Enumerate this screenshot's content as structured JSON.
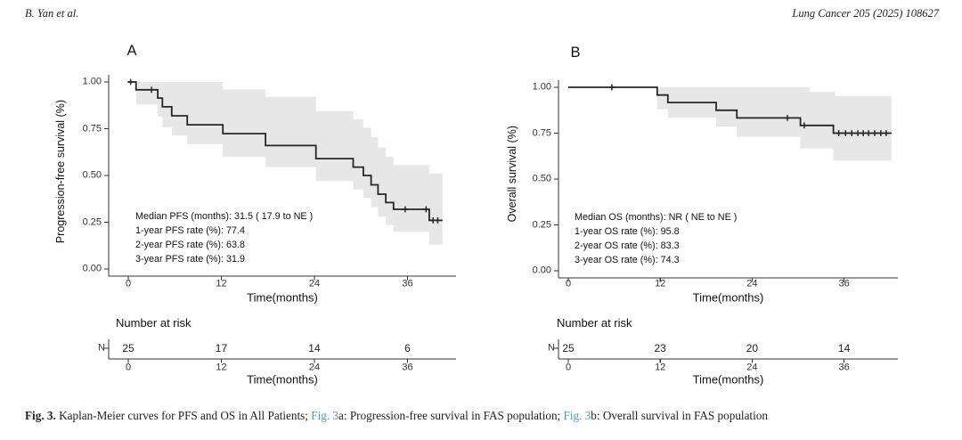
{
  "header": {
    "authors": "B. Yan et al.",
    "citation": "Lung Cancer 205 (2025) 108627"
  },
  "caption": {
    "label": "Fig. 3.",
    "part1": " Kaplan-Meier curves for PFS and OS in All Patients; ",
    "ref_a": "Fig. 3",
    "part2": "a: Progression-free survival in FAS population; ",
    "ref_b": "Fig. 3",
    "part3": "b: Overall survival in FAS population"
  },
  "colors": {
    "curve": "#262626",
    "band": "#e7e7e7",
    "axis": "#333333",
    "link": "#4b9cd3",
    "text": "#1a1a1a"
  },
  "chart_data": [
    {
      "type": "line",
      "subtype": "kaplan-meier-step",
      "panel_label": "A",
      "ylabel": "Progression-free survival (%)",
      "xlabel": "Time(months)",
      "xlim": [
        0,
        42
      ],
      "ylim": [
        0,
        1
      ],
      "x_ticks": [
        {
          "label": "0",
          "v": 0
        },
        {
          "label": "12",
          "v": 12
        },
        {
          "label": "24",
          "v": 24
        },
        {
          "label": "36",
          "v": 36
        }
      ],
      "y_ticks": [
        {
          "label": "1.00",
          "v": 1
        },
        {
          "label": "0.75",
          "v": 0.75
        },
        {
          "label": "0.50",
          "v": 0.5
        },
        {
          "label": "0.25",
          "v": 0.25
        },
        {
          "label": "0.00",
          "v": 0
        }
      ],
      "annotation": [
        "Median PFS (months): 31.5 ( 17.9 to NE )",
        "1-year PFS rate (%): 77.4",
        "2-year PFS rate (%): 63.8",
        "3-year PFS rate (%): 31.9"
      ],
      "curve": {
        "steps": [
          [
            0,
            1.0
          ],
          [
            1.0,
            0.958
          ],
          [
            3.8,
            0.914
          ],
          [
            4.4,
            0.867
          ],
          [
            5.6,
            0.819
          ],
          [
            7.6,
            0.771
          ],
          [
            12.2,
            0.724
          ],
          [
            17.7,
            0.66
          ],
          [
            24.2,
            0.59
          ],
          [
            29.0,
            0.545
          ],
          [
            30.3,
            0.5
          ],
          [
            31.3,
            0.45
          ],
          [
            32.2,
            0.4
          ],
          [
            33.2,
            0.355
          ],
          [
            34.2,
            0.319
          ],
          [
            38.8,
            0.26
          ]
        ],
        "end": 40.5
      },
      "censors": [
        [
          0.3,
          1.0
        ],
        [
          3.0,
          0.958
        ],
        [
          35.7,
          0.319
        ],
        [
          38.4,
          0.319
        ],
        [
          39.3,
          0.26
        ],
        [
          39.9,
          0.26
        ]
      ],
      "band": {
        "upper": [
          [
            1.0,
            1.0
          ],
          [
            12.2,
            0.96
          ],
          [
            17.7,
            0.92
          ],
          [
            24.2,
            0.845
          ],
          [
            29.0,
            0.8
          ],
          [
            30.3,
            0.755
          ],
          [
            31.3,
            0.705
          ],
          [
            32.2,
            0.65
          ],
          [
            33.2,
            0.6
          ],
          [
            34.2,
            0.555
          ],
          [
            38.8,
            0.51
          ]
        ],
        "lower": [
          [
            1.0,
            0.88
          ],
          [
            3.8,
            0.815
          ],
          [
            4.4,
            0.757
          ],
          [
            5.6,
            0.714
          ],
          [
            7.6,
            0.667
          ],
          [
            12.2,
            0.6
          ],
          [
            17.7,
            0.545
          ],
          [
            24.2,
            0.47
          ],
          [
            29.0,
            0.425
          ],
          [
            30.3,
            0.38
          ],
          [
            31.3,
            0.33
          ],
          [
            32.2,
            0.28
          ],
          [
            33.2,
            0.235
          ],
          [
            34.2,
            0.2
          ],
          [
            38.8,
            0.13
          ]
        ],
        "end": 40.5
      },
      "risk_table": {
        "title": "Number at risk",
        "axis_label": "N",
        "times": [
          0,
          12,
          24,
          36
        ],
        "counts": [
          25,
          17,
          14,
          6
        ],
        "xlabel": "Time(months)"
      }
    },
    {
      "type": "line",
      "subtype": "kaplan-meier-step",
      "panel_label": "B",
      "ylabel": "Overall survival (%)",
      "xlabel": "Time(months)",
      "xlim": [
        0,
        42
      ],
      "ylim": [
        0,
        1
      ],
      "x_ticks": [
        {
          "label": "0",
          "v": 0
        },
        {
          "label": "12",
          "v": 12
        },
        {
          "label": "24",
          "v": 24
        },
        {
          "label": "36",
          "v": 36
        }
      ],
      "y_ticks": [
        {
          "label": "1.00",
          "v": 1
        },
        {
          "label": "0.75",
          "v": 0.75
        },
        {
          "label": "0.50",
          "v": 0.5
        },
        {
          "label": "0.25",
          "v": 0.25
        },
        {
          "label": "0.00",
          "v": 0
        }
      ],
      "annotation": [
        "Median OS (months): NR ( NE to NE )",
        "1-year OS rate (%): 95.8",
        "2-year OS rate (%): 83.3",
        "3-year OS rate (%): 74.3"
      ],
      "curve": {
        "steps": [
          [
            0,
            1.0
          ],
          [
            11.6,
            0.958
          ],
          [
            13.0,
            0.917
          ],
          [
            19.3,
            0.875
          ],
          [
            22.0,
            0.833
          ],
          [
            30.3,
            0.792
          ],
          [
            34.6,
            0.75
          ]
        ],
        "end": 42.2
      },
      "censors": [
        [
          5.7,
          1.0
        ],
        [
          28.6,
          0.833
        ],
        [
          30.8,
          0.792
        ],
        [
          35.3,
          0.75
        ],
        [
          36.2,
          0.75
        ],
        [
          37.0,
          0.75
        ],
        [
          37.8,
          0.75
        ],
        [
          38.5,
          0.75
        ],
        [
          39.2,
          0.75
        ],
        [
          40.0,
          0.75
        ],
        [
          40.8,
          0.75
        ],
        [
          41.5,
          0.75
        ]
      ],
      "band": {
        "upper": [
          [
            11.6,
            1.0
          ],
          [
            31.5,
            0.975
          ],
          [
            34.8,
            0.952
          ]
        ],
        "lower": [
          [
            11.6,
            0.88
          ],
          [
            13.0,
            0.835
          ],
          [
            19.3,
            0.785
          ],
          [
            22.0,
            0.73
          ],
          [
            30.3,
            0.667
          ],
          [
            34.6,
            0.6
          ]
        ],
        "end": 42.2
      },
      "risk_table": {
        "title": "Number at risk",
        "axis_label": "N",
        "times": [
          0,
          12,
          24,
          36
        ],
        "counts": [
          25,
          23,
          20,
          14
        ],
        "xlabel": "Time(months)"
      }
    }
  ]
}
